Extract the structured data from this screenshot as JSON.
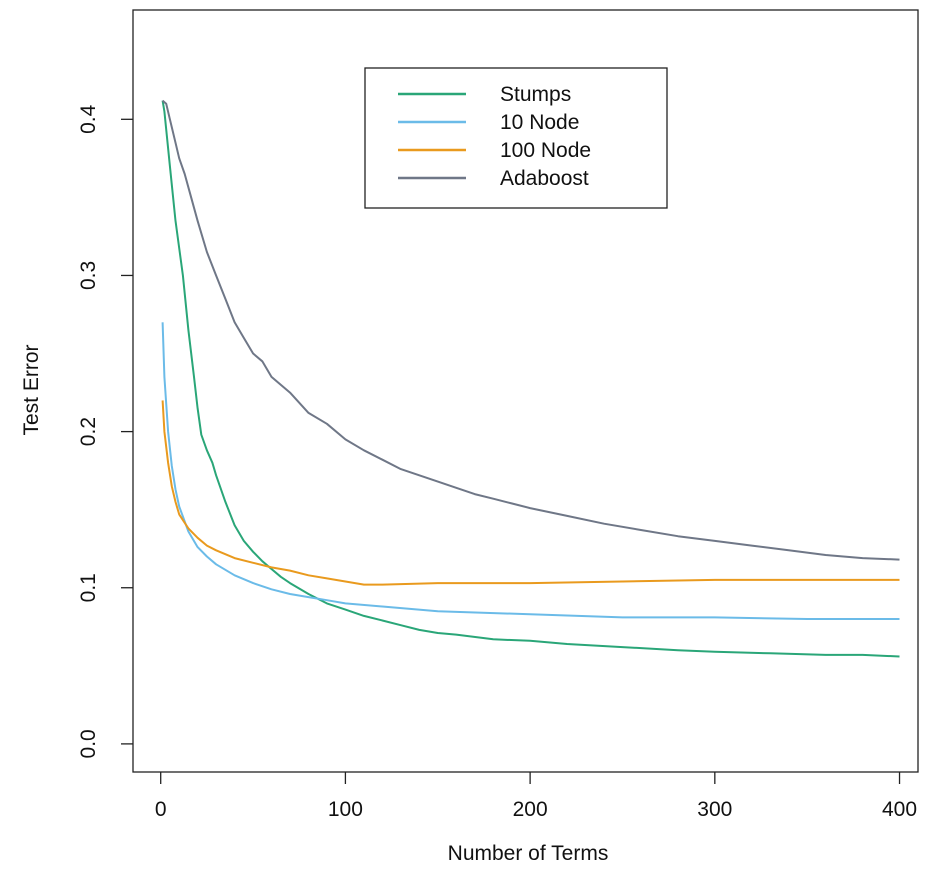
{
  "chart_data": {
    "type": "line",
    "title": "",
    "xlabel": "Number of Terms",
    "ylabel": "Test Error",
    "xlim": [
      -15,
      410
    ],
    "ylim": [
      -0.018,
      0.47
    ],
    "x_ticks": [
      "0",
      "100",
      "200",
      "300",
      "400"
    ],
    "y_ticks": [
      "0.0",
      "0.1",
      "0.2",
      "0.3",
      "0.4"
    ],
    "grid": false,
    "legend_position": "top-center",
    "series": [
      {
        "name": "Stumps",
        "color": "#2aa678",
        "x": [
          1,
          2,
          5,
          8,
          12,
          15,
          18,
          20,
          22,
          25,
          28,
          30,
          35,
          40,
          45,
          50,
          55,
          60,
          65,
          70,
          80,
          90,
          100,
          110,
          120,
          130,
          140,
          150,
          160,
          180,
          200,
          220,
          250,
          280,
          300,
          330,
          360,
          380,
          400
        ],
        "y": [
          0.412,
          0.405,
          0.37,
          0.335,
          0.3,
          0.265,
          0.235,
          0.215,
          0.198,
          0.188,
          0.18,
          0.172,
          0.155,
          0.14,
          0.13,
          0.123,
          0.117,
          0.112,
          0.107,
          0.103,
          0.096,
          0.09,
          0.086,
          0.082,
          0.079,
          0.076,
          0.073,
          0.071,
          0.07,
          0.067,
          0.066,
          0.064,
          0.062,
          0.06,
          0.059,
          0.058,
          0.057,
          0.057,
          0.056
        ]
      },
      {
        "name": "10 Node",
        "color": "#6bbbe8",
        "x": [
          1,
          2,
          4,
          6,
          8,
          10,
          15,
          20,
          25,
          30,
          40,
          50,
          60,
          70,
          80,
          90,
          100,
          120,
          150,
          200,
          250,
          300,
          350,
          400
        ],
        "y": [
          0.27,
          0.235,
          0.2,
          0.178,
          0.163,
          0.152,
          0.136,
          0.126,
          0.12,
          0.115,
          0.108,
          0.103,
          0.099,
          0.096,
          0.094,
          0.092,
          0.09,
          0.088,
          0.085,
          0.083,
          0.081,
          0.081,
          0.08,
          0.08
        ]
      },
      {
        "name": "100 Node",
        "color": "#e99a1e",
        "x": [
          1,
          2,
          4,
          6,
          8,
          10,
          15,
          20,
          25,
          30,
          40,
          50,
          60,
          70,
          80,
          90,
          100,
          110,
          120,
          150,
          200,
          250,
          300,
          350,
          400
        ],
        "y": [
          0.22,
          0.2,
          0.18,
          0.165,
          0.155,
          0.147,
          0.138,
          0.132,
          0.127,
          0.124,
          0.119,
          0.116,
          0.113,
          0.111,
          0.108,
          0.106,
          0.104,
          0.102,
          0.102,
          0.103,
          0.103,
          0.104,
          0.105,
          0.105,
          0.105
        ]
      },
      {
        "name": "Adaboost",
        "color": "#6f7787",
        "x": [
          1,
          3,
          5,
          8,
          10,
          13,
          16,
          20,
          25,
          30,
          35,
          40,
          45,
          50,
          55,
          60,
          70,
          80,
          90,
          100,
          110,
          120,
          130,
          140,
          150,
          160,
          170,
          180,
          190,
          200,
          220,
          240,
          260,
          280,
          300,
          320,
          340,
          360,
          380,
          400
        ],
        "y": [
          0.412,
          0.41,
          0.4,
          0.385,
          0.375,
          0.365,
          0.352,
          0.335,
          0.315,
          0.3,
          0.285,
          0.27,
          0.26,
          0.25,
          0.245,
          0.235,
          0.225,
          0.212,
          0.205,
          0.195,
          0.188,
          0.182,
          0.176,
          0.172,
          0.168,
          0.164,
          0.16,
          0.157,
          0.154,
          0.151,
          0.146,
          0.141,
          0.137,
          0.133,
          0.13,
          0.127,
          0.124,
          0.121,
          0.119,
          0.118
        ]
      }
    ]
  }
}
